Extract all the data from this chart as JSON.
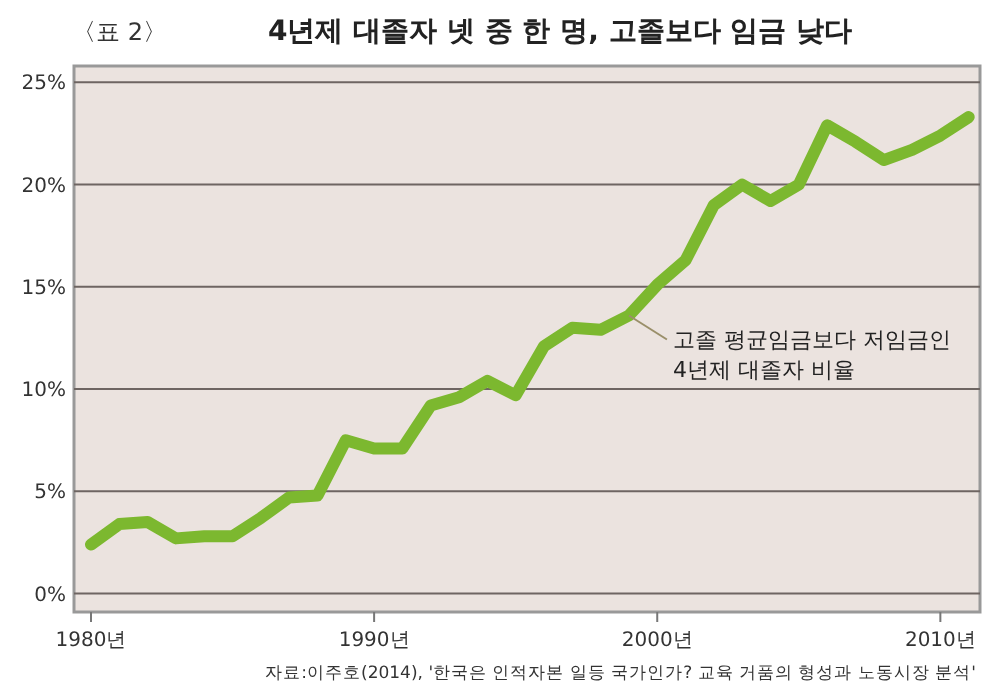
{
  "chart_data": {
    "type": "line",
    "title": "4년제 대졸자 넷 중 한 명, 고졸보다 임금 낮다",
    "x": [
      1980,
      1981,
      1982,
      1983,
      1984,
      1985,
      1986,
      1987,
      1988,
      1989,
      1990,
      1991,
      1992,
      1993,
      1994,
      1995,
      1996,
      1997,
      1998,
      1999,
      2000,
      2001,
      2002,
      2003,
      2004,
      2005,
      2006,
      2007,
      2008,
      2009,
      2010,
      2011
    ],
    "series": [
      {
        "color": "#7cb82f",
        "values": [
          2.4,
          3.4,
          3.5,
          2.7,
          2.8,
          2.8,
          3.7,
          4.7,
          4.8,
          7.5,
          7.1,
          7.1,
          9.2,
          9.6,
          10.4,
          9.7,
          12.1,
          13,
          12.9,
          13.6,
          15.1,
          16.3,
          19,
          20,
          19.2,
          20,
          22.9,
          22.1,
          21.2,
          21.7,
          22.4,
          23.3
        ]
      }
    ],
    "xlim": [
      1979.4,
      2011.4
    ],
    "ylim": [
      -0.9,
      25.8
    ],
    "xticks": [
      {
        "value": 1980,
        "label": "1980년"
      },
      {
        "value": 1990,
        "label": "1990년"
      },
      {
        "value": 2000,
        "label": "2000년"
      },
      {
        "value": 2010,
        "label": "2010년"
      }
    ],
    "yticks": [
      {
        "value": 0,
        "label": "0%"
      },
      {
        "value": 5,
        "label": "5%"
      },
      {
        "value": 10,
        "label": "10%"
      },
      {
        "value": 15,
        "label": "15%"
      },
      {
        "value": 20,
        "label": "20%"
      },
      {
        "value": 25,
        "label": "25%"
      }
    ],
    "grid": "y",
    "marker": "none",
    "line_style": "solid",
    "annotations": [
      "〈표 2〉",
      {
        "text": "고졸 평균임금보다 저임금인\n4년제 대졸자 비율",
        "x": 1999,
        "y": 13.6
      },
      "자료:이주호(2014), '한국은 인적자본 일등 국가인가? 교육 거품의 형성과 노동시장 분석'"
    ]
  }
}
